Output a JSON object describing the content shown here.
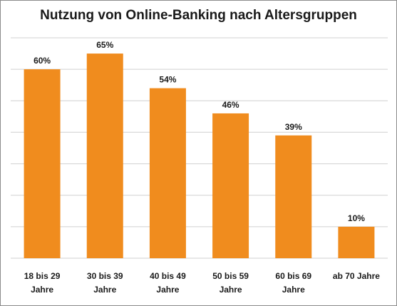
{
  "chart_data": {
    "type": "bar",
    "title": "Nutzung von Online-Banking nach Altersgruppen",
    "categories": [
      [
        "18 bis 29",
        "Jahre"
      ],
      [
        "30 bis 39",
        "Jahre"
      ],
      [
        "40 bis 49",
        "Jahre"
      ],
      [
        "50 bis 59",
        "Jahre"
      ],
      [
        "60 bis 69",
        "Jahre"
      ],
      [
        "ab 70 Jahre"
      ]
    ],
    "values": [
      60,
      65,
      54,
      46,
      39,
      10
    ],
    "value_labels": [
      "60%",
      "65%",
      "54%",
      "46%",
      "39%",
      "10%"
    ],
    "unit": "%",
    "ylim": [
      0,
      70
    ],
    "grid": true,
    "bar_color": "#f08c1e",
    "grid_color": "#d0d0d0"
  }
}
